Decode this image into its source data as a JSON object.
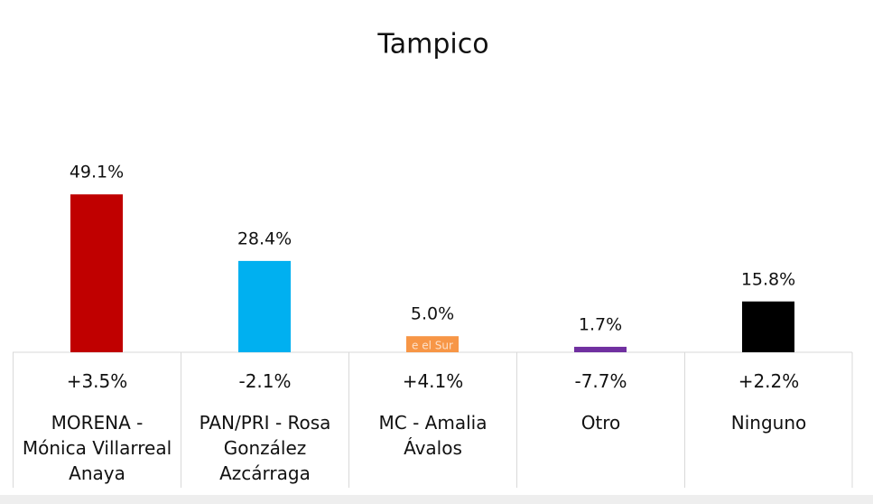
{
  "chart_data": {
    "type": "bar",
    "title": "Tampico",
    "categories": [
      "MORENA - Mónica Villarreal Anaya",
      "PAN/PRI - Rosa González Azcárraga",
      "MC - Amalia Ávalos",
      "Otro",
      "Ninguno"
    ],
    "values": [
      49.1,
      28.4,
      5.0,
      1.7,
      15.8
    ],
    "value_labels": [
      "49.1%",
      "28.4%",
      "5.0%",
      "1.7%",
      "15.8%"
    ],
    "colors": [
      "#c00000",
      "#00b0f0",
      "#f79646",
      "#7030a0",
      "#000000"
    ],
    "change_labels": [
      "+3.5%",
      "-2.1%",
      "+4.1%",
      "-7.7%",
      "+2.2%"
    ],
    "watermark": "e el Sur"
  }
}
